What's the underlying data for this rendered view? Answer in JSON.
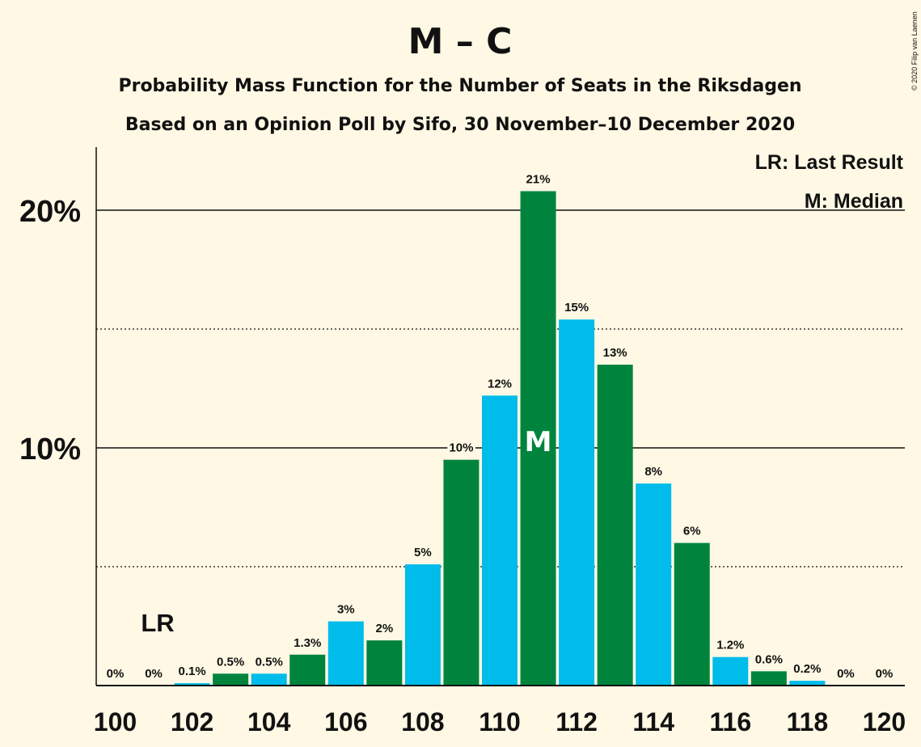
{
  "chart_data": {
    "type": "bar",
    "title": "M – C",
    "subtitle_1": "Probability Mass Function for the Number of Seats in the Riksdagen",
    "subtitle_2": "Based on an Opinion Poll by Sifo, 30 November–10 December 2020",
    "credit": "© 2020 Filip van Laenen",
    "legend": {
      "lr": "LR: Last Result",
      "median": "M: Median",
      "placement": "top-right"
    },
    "x": [
      100,
      101,
      102,
      103,
      104,
      105,
      106,
      107,
      108,
      109,
      110,
      111,
      112,
      113,
      114,
      115,
      116,
      117,
      118,
      119,
      120
    ],
    "values": [
      0,
      0,
      0.1,
      0.5,
      0.5,
      1.3,
      2.7,
      1.9,
      5.1,
      9.5,
      12.2,
      20.8,
      15.4,
      13.5,
      8.5,
      6.0,
      1.2,
      0.6,
      0.2,
      0,
      0
    ],
    "data_labels": [
      "0%",
      "0%",
      "0.1%",
      "0.5%",
      "0.5%",
      "1.3%",
      "3%",
      "2%",
      "5%",
      "10%",
      "12%",
      "21%",
      "15%",
      "13%",
      "8%",
      "6%",
      "1.2%",
      "0.6%",
      "0.2%",
      "0%",
      "0%"
    ],
    "xticks": [
      "100",
      "102",
      "104",
      "106",
      "108",
      "110",
      "112",
      "114",
      "116",
      "118",
      "120"
    ],
    "yticks": [
      "10%",
      "20%"
    ],
    "ylim": [
      0,
      22.6
    ],
    "last_result_seat": 101,
    "last_result_marker": "LR",
    "median_seat": 111,
    "median_marker": "M",
    "colors": {
      "green": "#00843d",
      "blue": "#00bcea",
      "background": "#fef8e4"
    },
    "grid": "solid at 10% steps, dotted at 5% steps"
  }
}
